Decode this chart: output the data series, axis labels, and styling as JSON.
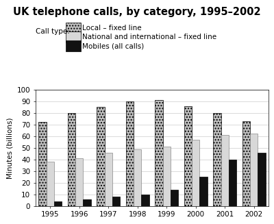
{
  "title": "UK telephone calls, by category, 1995–2002",
  "ylabel": "Minutes (billions)",
  "years": [
    1995,
    1996,
    1997,
    1998,
    1999,
    2000,
    2001,
    2002
  ],
  "local_fixed": [
    72,
    80,
    85,
    90,
    91,
    86,
    80,
    73
  ],
  "natl_intl_fixed": [
    38,
    41,
    46,
    49,
    51,
    57,
    61,
    62
  ],
  "mobiles": [
    4,
    6,
    8,
    10,
    14,
    25,
    40,
    46
  ],
  "color_local": "#bebebe",
  "color_natl": "#d8d8d8",
  "color_mobile": "#111111",
  "hatch_local": "....",
  "hatch_natl": "",
  "ylim": [
    0,
    100
  ],
  "yticks": [
    0,
    10,
    20,
    30,
    40,
    50,
    60,
    70,
    80,
    90,
    100
  ],
  "legend_label_local": "Local – fixed line",
  "legend_label_natl": "National and international – fixed line",
  "legend_label_mobile": "Mobiles (all calls)",
  "legend_prefix": "Call type:",
  "title_fontsize": 10.5,
  "axis_fontsize": 7.5,
  "legend_fontsize": 7.5
}
